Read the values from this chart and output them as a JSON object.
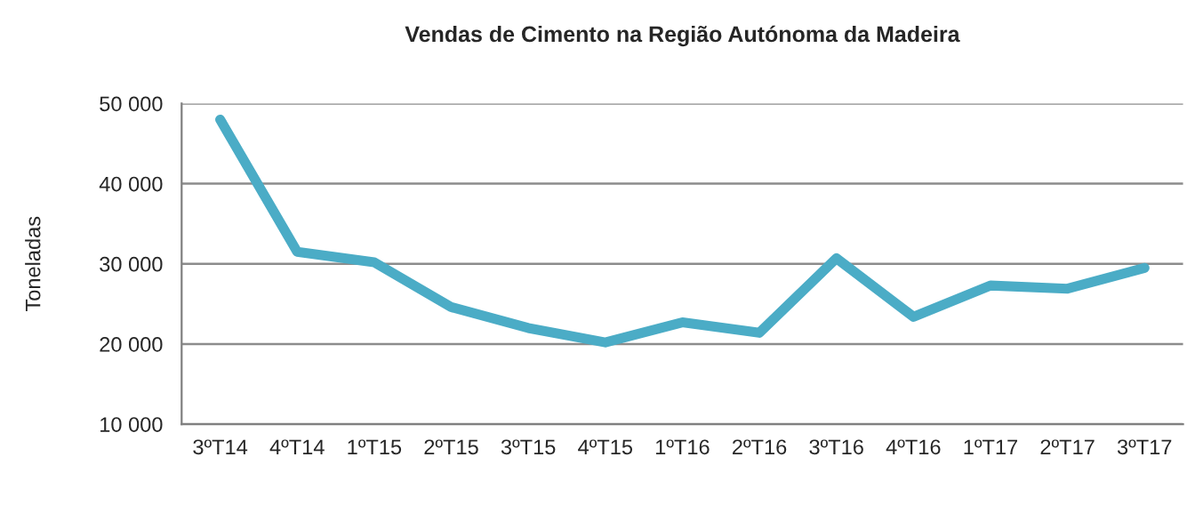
{
  "chart_data": {
    "type": "line",
    "title": "Vendas de Cimento na Região Autónoma da Madeira",
    "ylabel": "Toneladas",
    "categories": [
      "3ºT14",
      "4ºT14",
      "1ºT15",
      "2ºT15",
      "3ºT15",
      "4ºT15",
      "1ºT16",
      "2ºT16",
      "3ºT16",
      "4ºT16",
      "1ºT17",
      "2ºT17",
      "3ºT17"
    ],
    "series": [
      {
        "color": "#4bacc6",
        "values": [
          48000,
          31500,
          30200,
          24600,
          22000,
          20200,
          22700,
          21400,
          30700,
          23400,
          27300,
          26900,
          29500
        ]
      }
    ],
    "ylim": [
      10000,
      50000
    ],
    "yticks": [
      {
        "value": 10000,
        "label": "10 000"
      },
      {
        "value": 20000,
        "label": "20 000"
      },
      {
        "value": 30000,
        "label": "30 000"
      },
      {
        "value": 40000,
        "label": "40 000"
      },
      {
        "value": 50000,
        "label": "50 000"
      }
    ],
    "grid": "y",
    "legend": false,
    "marker": "none",
    "line_style": "solid"
  }
}
